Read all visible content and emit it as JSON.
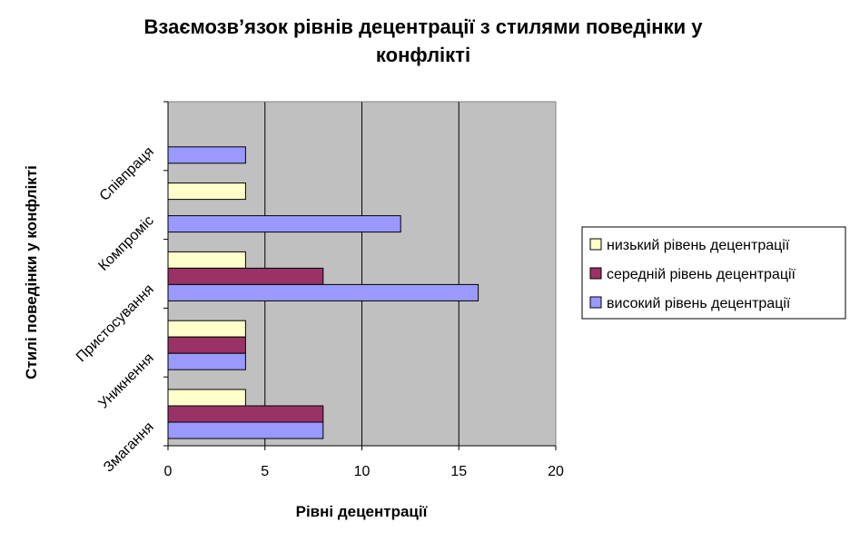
{
  "chart_data": {
    "type": "bar",
    "orientation": "horizontal",
    "title_lines": [
      "Взаємозв’язок рівнів децентрації з стилями поведінки у",
      "конфлікті"
    ],
    "xlabel": "Рівні децентрації",
    "ylabel": "Стилі поведінки у конфлікті",
    "categories": [
      "Змагання",
      "Уникнення",
      "Пристосування",
      "Компроміс",
      "Співпраця"
    ],
    "series": [
      {
        "name": "низький рівень децентрації",
        "color": "#FFFFCC",
        "values": [
          4,
          4,
          4,
          4,
          0
        ]
      },
      {
        "name": "середній рівень децентрації",
        "color": "#993366",
        "values": [
          8,
          4,
          8,
          0,
          0
        ]
      },
      {
        "name": "високий рівень децентрації",
        "color": "#9999FF",
        "values": [
          8,
          4,
          16,
          12,
          4
        ]
      }
    ],
    "xlim": [
      0,
      20
    ],
    "xticks": [
      "0",
      "5",
      "10",
      "15",
      "20"
    ],
    "plot_background": "#C0C0C0",
    "grid": true,
    "legend_position": "right"
  }
}
